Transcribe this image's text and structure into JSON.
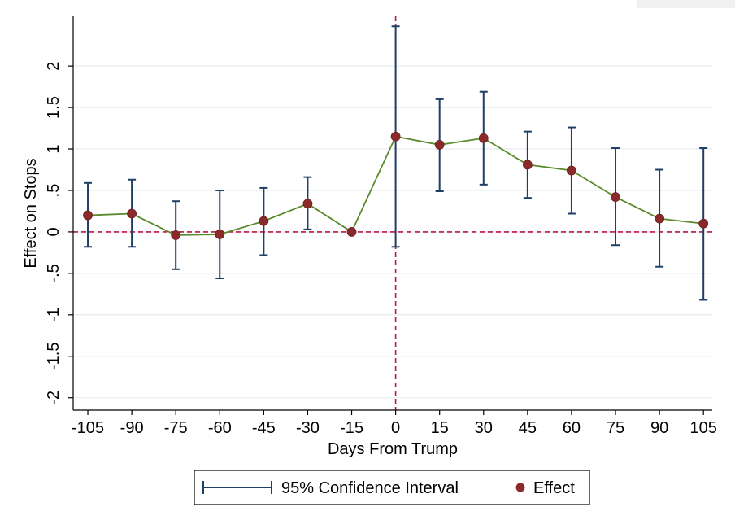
{
  "chart_data": {
    "type": "line",
    "xlabel": "Days From Trump",
    "ylabel": "Effect on Stops",
    "x_ticks": [
      -105,
      -90,
      -75,
      -60,
      -45,
      -30,
      -15,
      0,
      15,
      30,
      45,
      60,
      75,
      90,
      105
    ],
    "x_tick_labels": [
      "-105",
      "-90",
      "-75",
      "-60",
      "-45",
      "-30",
      "-15",
      "0",
      "15",
      "30",
      "45",
      "60",
      "75",
      "90",
      "105"
    ],
    "y_ticks": [
      -2,
      -1.5,
      -1,
      -0.5,
      0,
      0.5,
      1,
      1.5,
      2
    ],
    "y_tick_labels": [
      "-2",
      "-1.5",
      "-1",
      "-.5",
      "0",
      ".5",
      "1",
      "1.5",
      "2"
    ],
    "xlim": [
      -110,
      108
    ],
    "ylim": [
      -2.15,
      2.6
    ],
    "grid": true,
    "reference_lines": {
      "horizontal_y": 0,
      "vertical_x": 0,
      "color": "#c0143c"
    },
    "series": [
      {
        "name": "Effect",
        "color": "#8b2a2a",
        "line_color": "#5a8a2c",
        "x": [
          -105,
          -90,
          -75,
          -60,
          -45,
          -30,
          -15,
          0,
          15,
          30,
          45,
          60,
          75,
          90,
          105
        ],
        "y": [
          0.2,
          0.22,
          -0.04,
          -0.03,
          0.13,
          0.34,
          0.0,
          1.15,
          1.05,
          1.13,
          0.81,
          0.74,
          0.42,
          0.16,
          0.1
        ]
      },
      {
        "name": "95% Confidence Interval",
        "color": "#1f3f64",
        "x": [
          -105,
          -90,
          -75,
          -60,
          -45,
          -30,
          -15,
          0,
          15,
          30,
          45,
          60,
          75,
          90,
          105
        ],
        "lower": [
          -0.18,
          -0.18,
          -0.45,
          -0.56,
          -0.28,
          0.03,
          0.0,
          -0.18,
          0.49,
          0.57,
          0.41,
          0.22,
          -0.16,
          -0.42,
          -0.82
        ],
        "upper": [
          0.59,
          0.63,
          0.37,
          0.5,
          0.53,
          0.66,
          0.0,
          2.48,
          1.6,
          1.69,
          1.21,
          1.26,
          1.01,
          0.75,
          1.01
        ]
      }
    ],
    "legend": {
      "placement": "bottom",
      "items": [
        {
          "label": "95% Confidence Interval",
          "kind": "ci"
        },
        {
          "label": "Effect",
          "kind": "marker"
        }
      ]
    }
  }
}
